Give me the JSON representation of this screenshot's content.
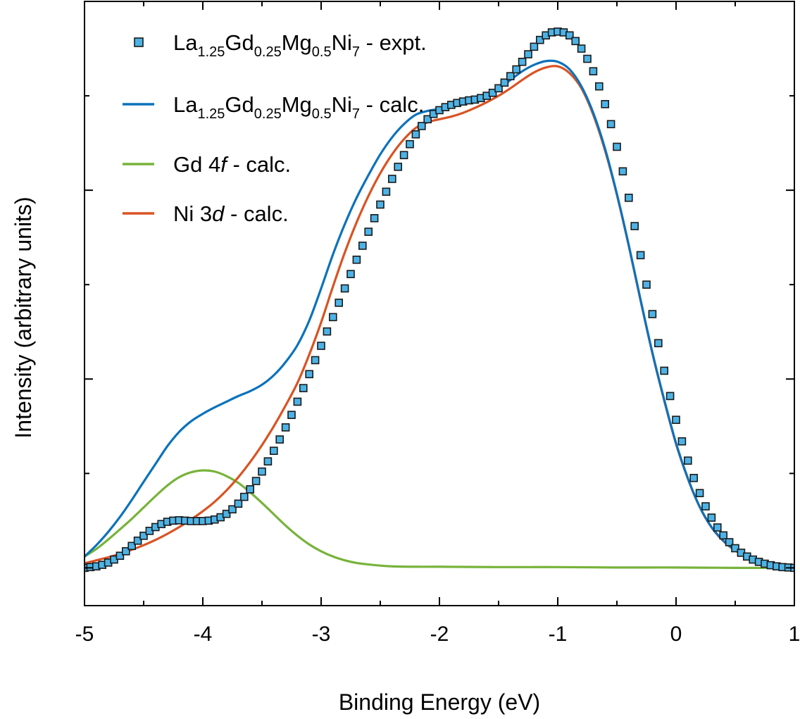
{
  "chart_data": {
    "type": "line",
    "xlabel": "Binding Energy (eV)",
    "ylabel": "Intensity (arbitrary units)",
    "xlim": [
      -5,
      1
    ],
    "ylim": [
      -0.1,
      1.5
    ],
    "x_ticks": [
      -5,
      -4,
      -3,
      -2,
      -1,
      0,
      1
    ],
    "x_tick_labels": [
      "-5",
      "-4",
      "-3",
      "-2",
      "-1",
      "0",
      "1"
    ],
    "y_tick_labels_visible": false,
    "grid": false,
    "legend": {
      "position": "top-left",
      "entries": [
        {
          "series": "expt",
          "base": "La",
          "parts": [
            {
              "t": "La"
            },
            {
              "t": "1.25",
              "sub": true
            },
            {
              "t": "Gd"
            },
            {
              "t": "0.25",
              "sub": true
            },
            {
              "t": "Mg"
            },
            {
              "t": "0.5",
              "sub": true
            },
            {
              "t": "Ni"
            },
            {
              "t": "7",
              "sub": true
            },
            {
              "t": " - expt."
            }
          ]
        },
        {
          "series": "total",
          "parts": [
            {
              "t": "La"
            },
            {
              "t": "1.25",
              "sub": true
            },
            {
              "t": "Gd"
            },
            {
              "t": "0.25",
              "sub": true
            },
            {
              "t": "Mg"
            },
            {
              "t": "0.5",
              "sub": true
            },
            {
              "t": "Ni"
            },
            {
              "t": "7",
              "sub": true
            },
            {
              "t": " - calc."
            }
          ]
        },
        {
          "series": "gd4f",
          "parts": [
            {
              "t": "Gd 4"
            },
            {
              "t": "f",
              "italic": true
            },
            {
              "t": " - calc."
            }
          ]
        },
        {
          "series": "ni3d",
          "parts": [
            {
              "t": "Ni 3"
            },
            {
              "t": "d",
              "italic": true
            },
            {
              "t": " - calc."
            }
          ]
        }
      ]
    },
    "series": [
      {
        "id": "expt",
        "name": "La1.25Gd0.25Mg0.5Ni7 - expt.",
        "kind": "scatter",
        "marker": "square",
        "color": "#4db3e6",
        "edge_color": "#1a1a1a",
        "x": [
          -5.0,
          -4.95,
          -4.9,
          -4.85,
          -4.8,
          -4.75,
          -4.7,
          -4.65,
          -4.6,
          -4.55,
          -4.5,
          -4.45,
          -4.4,
          -4.35,
          -4.3,
          -4.25,
          -4.2,
          -4.15,
          -4.1,
          -4.05,
          -4.0,
          -3.95,
          -3.9,
          -3.85,
          -3.8,
          -3.75,
          -3.7,
          -3.65,
          -3.6,
          -3.55,
          -3.5,
          -3.45,
          -3.4,
          -3.35,
          -3.3,
          -3.25,
          -3.2,
          -3.15,
          -3.1,
          -3.05,
          -3.0,
          -2.95,
          -2.9,
          -2.85,
          -2.8,
          -2.75,
          -2.7,
          -2.65,
          -2.6,
          -2.55,
          -2.5,
          -2.45,
          -2.4,
          -2.35,
          -2.3,
          -2.25,
          -2.2,
          -2.15,
          -2.1,
          -2.05,
          -2.0,
          -1.95,
          -1.9,
          -1.85,
          -1.8,
          -1.75,
          -1.7,
          -1.65,
          -1.6,
          -1.55,
          -1.5,
          -1.45,
          -1.4,
          -1.35,
          -1.3,
          -1.25,
          -1.2,
          -1.15,
          -1.1,
          -1.05,
          -1.0,
          -0.95,
          -0.9,
          -0.85,
          -0.8,
          -0.75,
          -0.7,
          -0.65,
          -0.6,
          -0.55,
          -0.5,
          -0.45,
          -0.4,
          -0.35,
          -0.3,
          -0.25,
          -0.2,
          -0.15,
          -0.1,
          -0.05,
          0.0,
          0.05,
          0.1,
          0.15,
          0.2,
          0.25,
          0.3,
          0.35,
          0.4,
          0.45,
          0.5,
          0.55,
          0.6,
          0.65,
          0.7,
          0.75,
          0.8,
          0.85,
          0.9,
          0.95,
          1.0
        ],
        "values": [
          0.0,
          0.002,
          0.004,
          0.008,
          0.014,
          0.022,
          0.032,
          0.044,
          0.058,
          0.072,
          0.085,
          0.098,
          0.108,
          0.116,
          0.122,
          0.125,
          0.126,
          0.125,
          0.124,
          0.124,
          0.124,
          0.125,
          0.128,
          0.134,
          0.143,
          0.155,
          0.17,
          0.188,
          0.208,
          0.23,
          0.255,
          0.282,
          0.31,
          0.34,
          0.372,
          0.405,
          0.44,
          0.476,
          0.513,
          0.55,
          0.588,
          0.626,
          0.664,
          0.702,
          0.74,
          0.778,
          0.816,
          0.853,
          0.89,
          0.926,
          0.962,
          0.996,
          1.03,
          1.062,
          1.093,
          1.122,
          1.148,
          1.17,
          1.188,
          1.202,
          1.212,
          1.22,
          1.226,
          1.231,
          1.235,
          1.238,
          1.24,
          1.244,
          1.25,
          1.258,
          1.27,
          1.285,
          1.302,
          1.32,
          1.34,
          1.36,
          1.38,
          1.398,
          1.41,
          1.418,
          1.42,
          1.418,
          1.41,
          1.395,
          1.375,
          1.348,
          1.315,
          1.275,
          1.228,
          1.175,
          1.115,
          1.05,
          0.98,
          0.905,
          0.828,
          0.75,
          0.672,
          0.595,
          0.522,
          0.455,
          0.392,
          0.335,
          0.284,
          0.238,
          0.198,
          0.163,
          0.133,
          0.107,
          0.086,
          0.068,
          0.052,
          0.04,
          0.03,
          0.022,
          0.016,
          0.011,
          0.007,
          0.004,
          0.002,
          0.001,
          0.0
        ]
      },
      {
        "id": "total",
        "name": "La1.25Gd0.25Mg0.5Ni7 - calc.",
        "kind": "line",
        "color": "#0b72bb",
        "x": [
          -5.0,
          -4.9,
          -4.8,
          -4.7,
          -4.6,
          -4.5,
          -4.4,
          -4.3,
          -4.2,
          -4.1,
          -4.0,
          -3.9,
          -3.8,
          -3.7,
          -3.6,
          -3.5,
          -3.4,
          -3.3,
          -3.2,
          -3.1,
          -3.0,
          -2.9,
          -2.8,
          -2.7,
          -2.6,
          -2.5,
          -2.4,
          -2.3,
          -2.2,
          -2.1,
          -2.0,
          -1.9,
          -1.8,
          -1.7,
          -1.6,
          -1.5,
          -1.4,
          -1.3,
          -1.2,
          -1.1,
          -1.0,
          -0.9,
          -0.8,
          -0.7,
          -0.6,
          -0.5,
          -0.4,
          -0.3,
          -0.2,
          -0.1,
          0.0,
          0.1,
          0.2,
          0.3,
          0.4,
          0.5,
          0.6,
          0.7,
          0.8,
          0.9,
          1.0
        ],
        "values": [
          0.03,
          0.06,
          0.095,
          0.135,
          0.18,
          0.228,
          0.275,
          0.322,
          0.36,
          0.388,
          0.408,
          0.425,
          0.44,
          0.455,
          0.468,
          0.485,
          0.51,
          0.545,
          0.59,
          0.655,
          0.74,
          0.83,
          0.91,
          0.98,
          1.04,
          1.095,
          1.14,
          1.175,
          1.2,
          1.21,
          1.215,
          1.22,
          1.228,
          1.238,
          1.252,
          1.27,
          1.292,
          1.315,
          1.332,
          1.342,
          1.34,
          1.32,
          1.275,
          1.205,
          1.11,
          0.99,
          0.855,
          0.71,
          0.57,
          0.445,
          0.33,
          0.237,
          0.162,
          0.108,
          0.072,
          0.047,
          0.031,
          0.019,
          0.011,
          0.005,
          0.0
        ]
      },
      {
        "id": "gd4f",
        "name": "Gd 4f - calc.",
        "kind": "line",
        "color": "#77b33a",
        "x": [
          -5.0,
          -4.9,
          -4.8,
          -4.7,
          -4.6,
          -4.5,
          -4.4,
          -4.3,
          -4.2,
          -4.1,
          -4.0,
          -3.9,
          -3.8,
          -3.7,
          -3.6,
          -3.5,
          -3.4,
          -3.3,
          -3.2,
          -3.1,
          -3.0,
          -2.9,
          -2.8,
          -2.7,
          -2.6,
          -2.5,
          -2.4,
          -2.2,
          -2.0,
          -1.5,
          -1.0,
          -0.5,
          0.0,
          0.5,
          1.0
        ],
        "values": [
          0.03,
          0.05,
          0.075,
          0.102,
          0.13,
          0.16,
          0.19,
          0.218,
          0.24,
          0.253,
          0.258,
          0.255,
          0.243,
          0.225,
          0.2,
          0.172,
          0.142,
          0.112,
          0.085,
          0.062,
          0.044,
          0.03,
          0.02,
          0.013,
          0.009,
          0.006,
          0.004,
          0.003,
          0.003,
          0.002,
          0.002,
          0.001,
          0.001,
          0.0,
          0.0
        ]
      },
      {
        "id": "ni3d",
        "name": "Ni 3d - calc.",
        "kind": "line",
        "color": "#d95323",
        "x": [
          -5.0,
          -4.9,
          -4.8,
          -4.7,
          -4.6,
          -4.5,
          -4.4,
          -4.3,
          -4.2,
          -4.1,
          -4.0,
          -3.9,
          -3.8,
          -3.7,
          -3.6,
          -3.5,
          -3.4,
          -3.3,
          -3.2,
          -3.1,
          -3.0,
          -2.9,
          -2.8,
          -2.7,
          -2.6,
          -2.5,
          -2.4,
          -2.3,
          -2.2,
          -2.1,
          -2.0,
          -1.9,
          -1.8,
          -1.7,
          -1.6,
          -1.5,
          -1.4,
          -1.3,
          -1.2,
          -1.1,
          -1.0,
          -0.9,
          -0.8,
          -0.7,
          -0.6,
          -0.5,
          -0.4,
          -0.3,
          -0.2,
          -0.1,
          0.0,
          0.1,
          0.2,
          0.3,
          0.4,
          0.5,
          0.6,
          0.7,
          0.8,
          0.9,
          1.0
        ],
        "values": [
          0.012,
          0.02,
          0.028,
          0.037,
          0.048,
          0.06,
          0.074,
          0.09,
          0.108,
          0.128,
          0.15,
          0.175,
          0.205,
          0.24,
          0.28,
          0.325,
          0.375,
          0.43,
          0.49,
          0.565,
          0.65,
          0.745,
          0.835,
          0.915,
          0.985,
          1.045,
          1.095,
          1.135,
          1.165,
          1.18,
          1.188,
          1.195,
          1.205,
          1.218,
          1.233,
          1.25,
          1.27,
          1.292,
          1.312,
          1.325,
          1.328,
          1.31,
          1.27,
          1.2,
          1.105,
          0.988,
          0.853,
          0.708,
          0.568,
          0.443,
          0.328,
          0.236,
          0.161,
          0.107,
          0.071,
          0.046,
          0.03,
          0.018,
          0.01,
          0.005,
          0.0
        ]
      }
    ]
  }
}
